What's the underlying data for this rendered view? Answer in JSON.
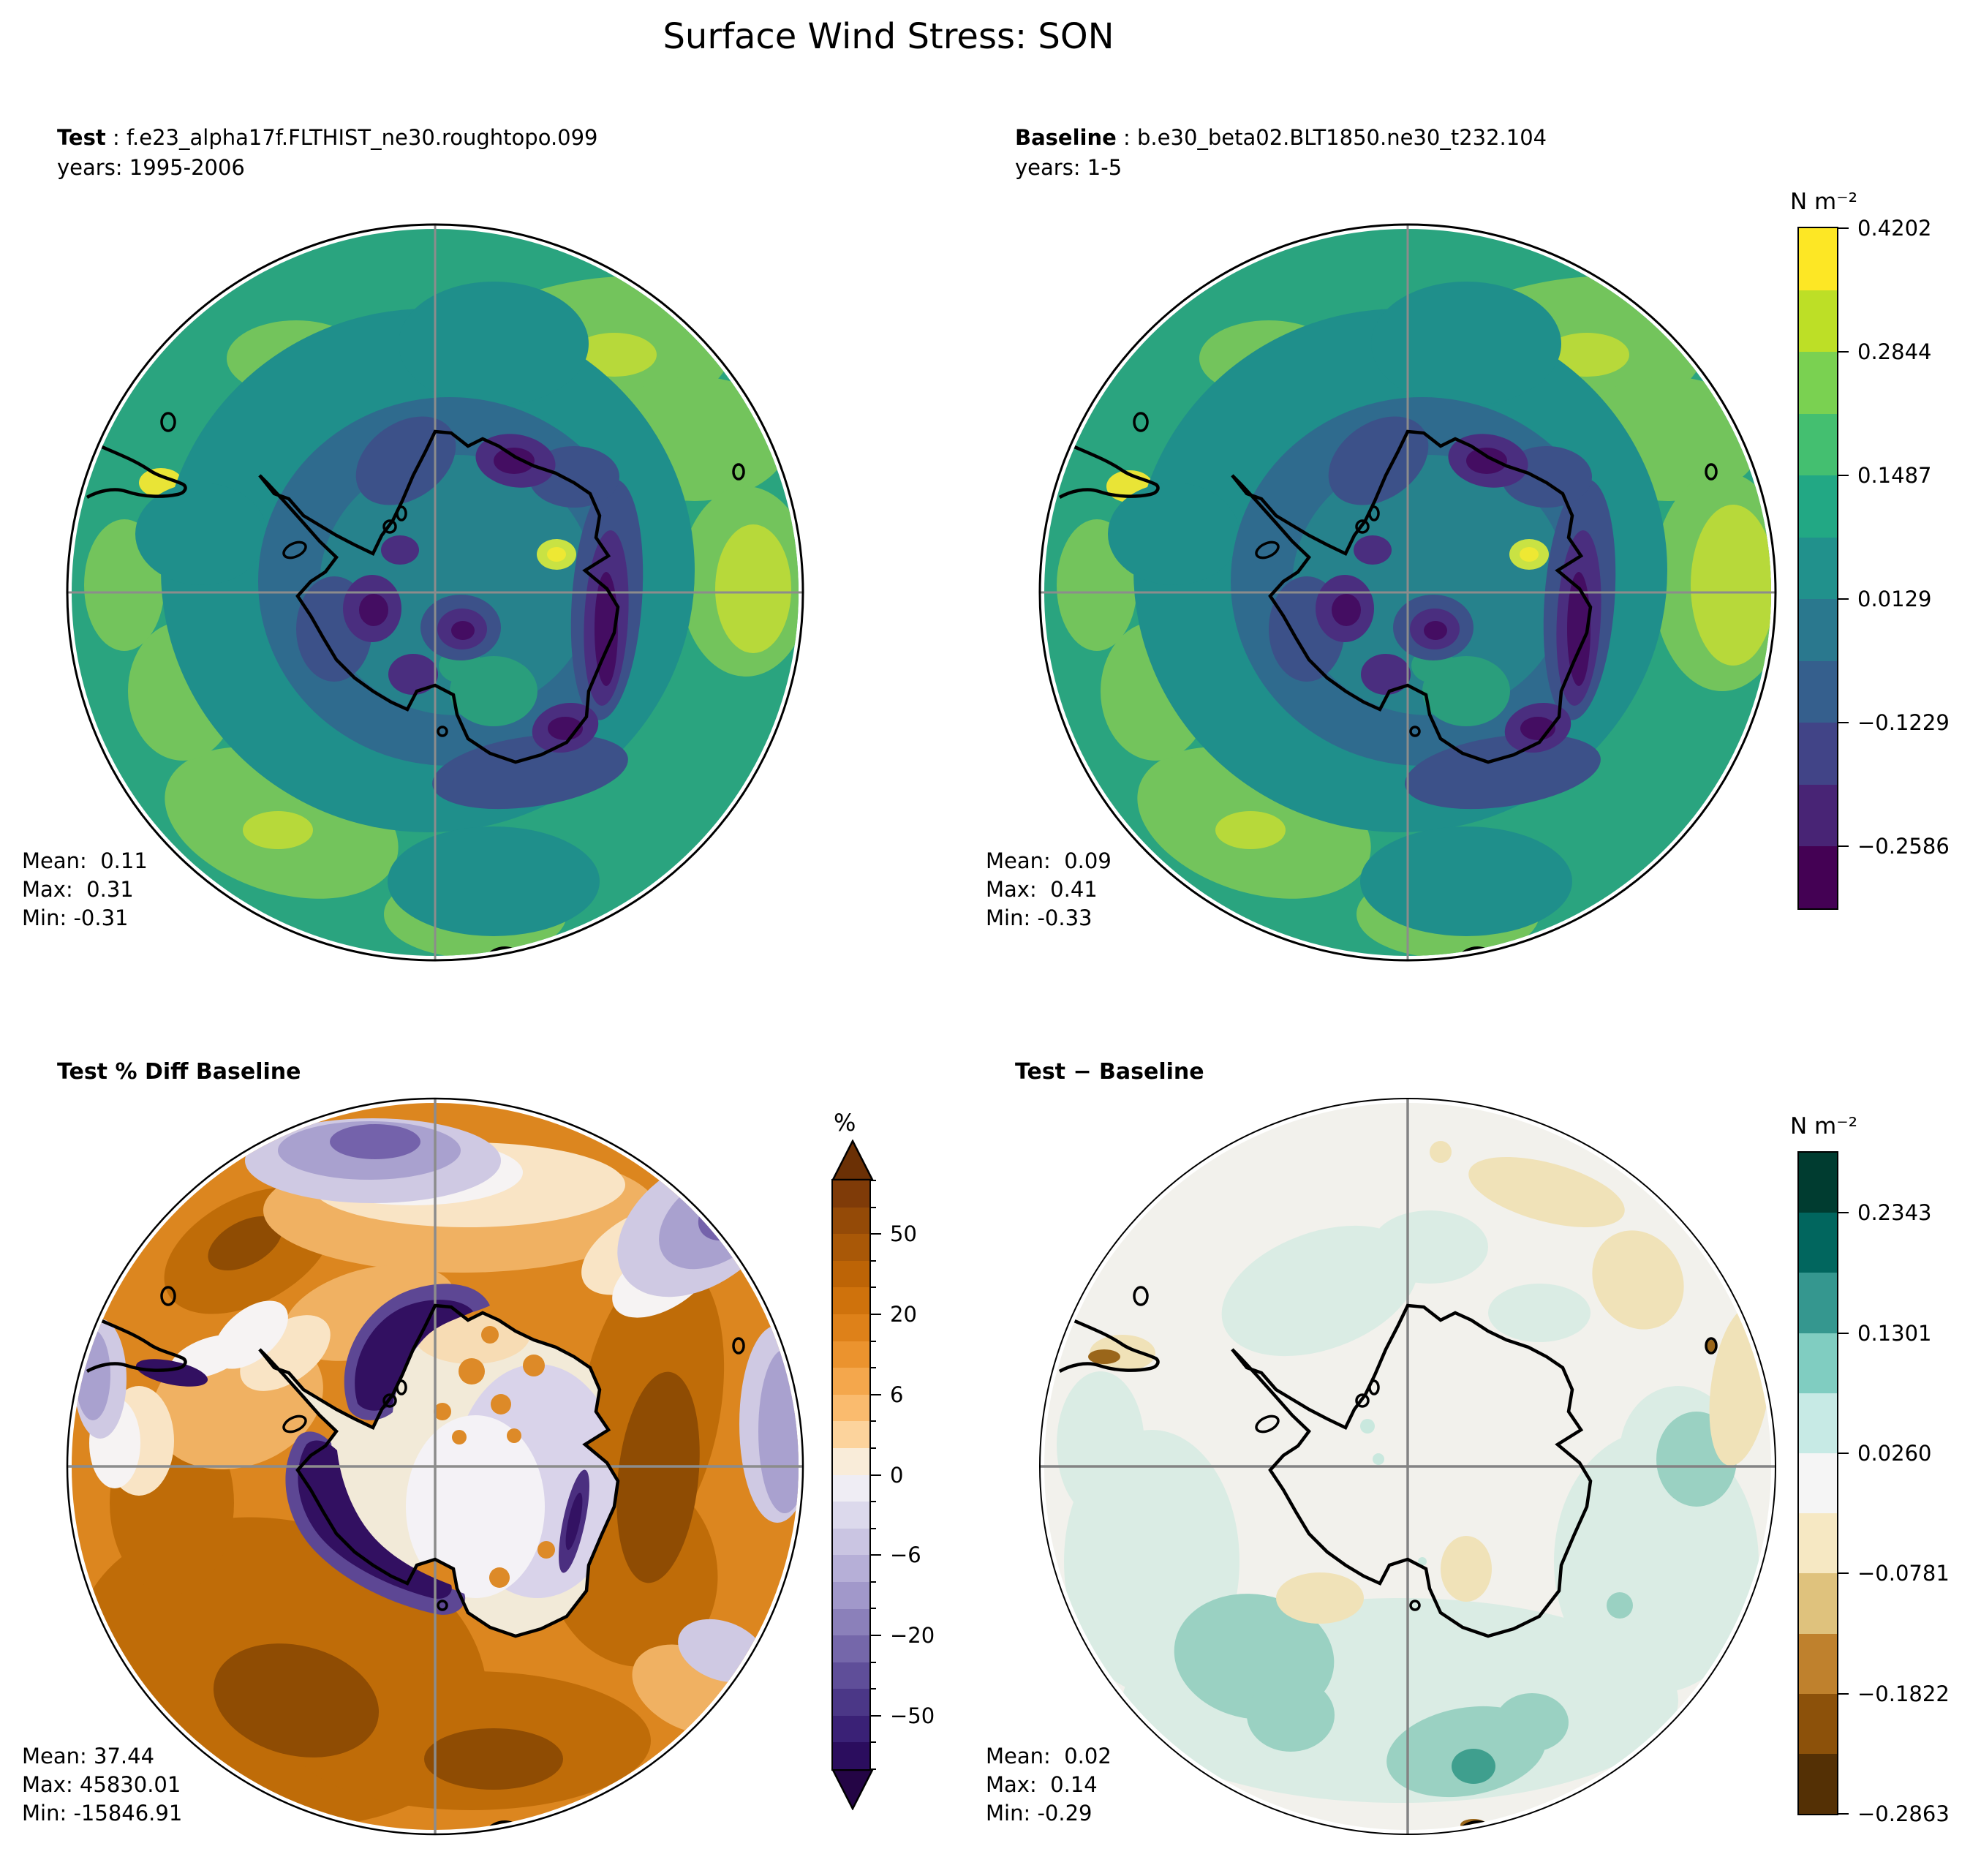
{
  "title": "Surface Wind Stress: SON",
  "panels": {
    "test": {
      "label": "Test",
      "case": " : f.e23_alpha17f.FLTHIST_ne30.roughtopo.099",
      "years": "years: 1995-2006",
      "stats": [
        "Mean:  0.11",
        "Max:  0.31",
        "Min: -0.31"
      ]
    },
    "baseline": {
      "label": "Baseline",
      "case": " : b.e30_beta02.BLT1850.ne30_t232.104",
      "years": "years: 1-5",
      "stats": [
        "Mean:  0.09",
        "Max:  0.41",
        "Min: -0.33"
      ]
    },
    "pct_diff": {
      "label": "Test % Diff Baseline",
      "stats": [
        "Mean: 37.44",
        "Max: 45830.01",
        "Min: -15846.91"
      ]
    },
    "diff": {
      "label": "Test − Baseline",
      "stats": [
        "Mean:  0.02",
        "Max:  0.14",
        "Min: -0.29"
      ]
    }
  },
  "colorbars": {
    "wind": {
      "title": "N m⁻²",
      "band_colors": [
        "#fde725",
        "#bddf26",
        "#7ad151",
        "#44bf70",
        "#22a884",
        "#21918c",
        "#2a788e",
        "#355f8d",
        "#414487",
        "#482475",
        "#440154"
      ],
      "tick_labels": [
        "0.4202",
        "0.2844",
        "0.1487",
        "0.0129",
        "−0.1229",
        "−0.2586"
      ],
      "tick_boundaries": [
        0,
        2,
        4,
        6,
        8,
        10
      ]
    },
    "pct": {
      "title": "%",
      "band_colors": [
        "#7f3b08",
        "#944a07",
        "#a95807",
        "#bd6406",
        "#cf720c",
        "#de8119",
        "#eb932e",
        "#f4a74c",
        "#fabb6e",
        "#fcd39c",
        "#f9ecd9",
        "#efedf4",
        "#dcd9ec",
        "#cac5e2",
        "#b6afd7",
        "#a198ca",
        "#8b80ba",
        "#7567aa",
        "#5f4e99",
        "#4b3787",
        "#3a2176",
        "#2b0d5e"
      ],
      "arrow_top": "#6b3005",
      "arrow_bottom": "#240545",
      "tick_labels": [
        "50",
        "20",
        "6",
        "0",
        "−6",
        "−20",
        "−50"
      ],
      "tick_boundaries": [
        2,
        5,
        8,
        11,
        14,
        17,
        20
      ],
      "minor_ticks": true
    },
    "diff": {
      "title": "N m⁻²",
      "band_colors": [
        "#003c30",
        "#01665e",
        "#35978f",
        "#80cdc1",
        "#c7eae5",
        "#f5f5f5",
        "#f6e8c3",
        "#dfc27d",
        "#bf812d",
        "#8c510a",
        "#543005"
      ],
      "tick_labels": [
        "0.2343",
        "0.1301",
        "0.0260",
        "−0.0781",
        "−0.1822",
        "−0.2863"
      ],
      "tick_boundaries": [
        1,
        3,
        5,
        7,
        9,
        11
      ]
    }
  },
  "chart_data": [
    {
      "type": "heatmap",
      "subtype": "filled_contour_polar_map",
      "panel": "Test",
      "case": "f.e23_alpha17f.FLTHIST_ne30.roughtopo.099",
      "years": "1995-2006",
      "variable": "Surface Wind Stress",
      "season": "SON",
      "units": "N m⁻²",
      "projection": "south_polar_stereographic",
      "colormap": "viridis",
      "colorbar_ticks": [
        0.4202,
        0.2844,
        0.1487,
        0.0129,
        -0.1229,
        -0.2586
      ],
      "stats": {
        "mean": 0.11,
        "max": 0.31,
        "min": -0.31
      }
    },
    {
      "type": "heatmap",
      "subtype": "filled_contour_polar_map",
      "panel": "Baseline",
      "case": "b.e30_beta02.BLT1850.ne30_t232.104",
      "years": "1-5",
      "variable": "Surface Wind Stress",
      "season": "SON",
      "units": "N m⁻²",
      "projection": "south_polar_stereographic",
      "colormap": "viridis",
      "colorbar_ticks": [
        0.4202,
        0.2844,
        0.1487,
        0.0129,
        -0.1229,
        -0.2586
      ],
      "stats": {
        "mean": 0.09,
        "max": 0.41,
        "min": -0.33
      }
    },
    {
      "type": "heatmap",
      "subtype": "filled_contour_polar_map",
      "panel": "Test % Diff Baseline",
      "units": "%",
      "projection": "south_polar_stereographic",
      "colormap": "PuOr_r",
      "colorbar_ticks": [
        50,
        20,
        6,
        0,
        -6,
        -20,
        -50
      ],
      "stats": {
        "mean": 37.44,
        "max": 45830.01,
        "min": -15846.91
      }
    },
    {
      "type": "heatmap",
      "subtype": "filled_contour_polar_map",
      "panel": "Test − Baseline",
      "units": "N m⁻²",
      "projection": "south_polar_stereographic",
      "colormap": "BrBG",
      "colorbar_ticks": [
        0.2343,
        0.1301,
        0.026,
        -0.0781,
        -0.1822,
        -0.2863
      ],
      "stats": {
        "mean": 0.02,
        "max": 0.14,
        "min": -0.29
      }
    }
  ]
}
